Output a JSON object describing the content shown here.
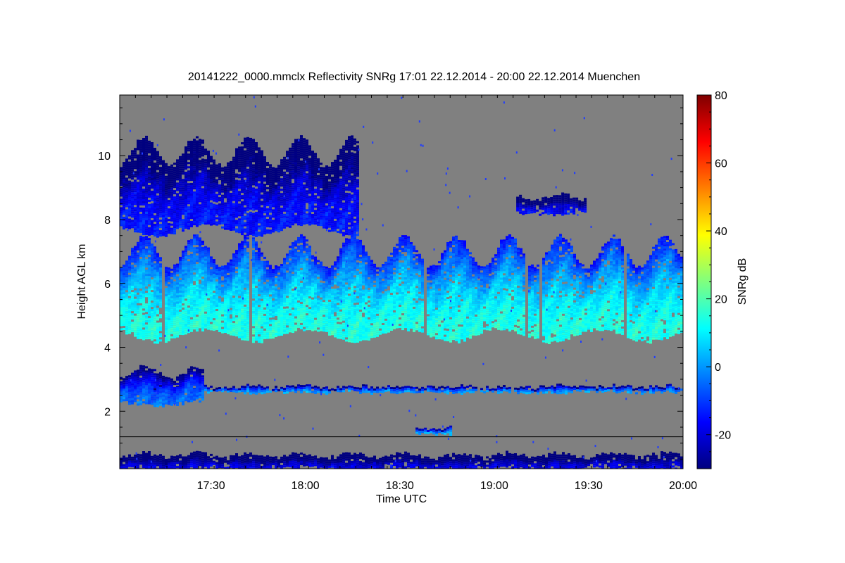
{
  "chart_data": {
    "type": "heatmap",
    "title": "20141222_0000.mmclx Reflectivity SNRg   17:01 22.12.2014 - 20:00 22.12.2014 Muenchen",
    "xlabel": "Time UTC",
    "ylabel": "Height AGL km",
    "colorbar_label": "SNRg dB",
    "x_range_min": [
      1021,
      1200
    ],
    "y_range_km": [
      0.2,
      11.9
    ],
    "color_range_db": [
      -30,
      80
    ],
    "x_ticks": [
      {
        "min": 1050,
        "label": "17:30"
      },
      {
        "min": 1080,
        "label": "18:00"
      },
      {
        "min": 1110,
        "label": "18:30"
      },
      {
        "min": 1140,
        "label": "19:00"
      },
      {
        "min": 1170,
        "label": "19:30"
      },
      {
        "min": 1200,
        "label": "20:00"
      }
    ],
    "y_ticks": [
      {
        "km": 2,
        "label": "2"
      },
      {
        "km": 4,
        "label": "4"
      },
      {
        "km": 6,
        "label": "6"
      },
      {
        "km": 8,
        "label": "8"
      },
      {
        "km": 10,
        "label": "10"
      }
    ],
    "colorbar_ticks": [
      {
        "db": -20,
        "label": "-20"
      },
      {
        "db": 0,
        "label": "0"
      },
      {
        "db": 20,
        "label": "20"
      },
      {
        "db": 40,
        "label": "40"
      },
      {
        "db": 60,
        "label": "60"
      },
      {
        "db": 80,
        "label": "80"
      }
    ],
    "background_color": "#808080",
    "colormap": [
      "#00007f",
      "#0000ff",
      "#007fff",
      "#00ffff",
      "#7fff7f",
      "#ffff00",
      "#ff7f00",
      "#ff0000",
      "#7f0000"
    ],
    "features": [
      {
        "name": "main-cloud-deck",
        "t_start": 1021,
        "t_end": 1200,
        "base_km": 4.2,
        "top_km": 7.5,
        "peak_db": 18
      },
      {
        "name": "upper-cirrus",
        "t_start": 1021,
        "t_end": 1097,
        "base_km": 7.5,
        "top_km": 10.6,
        "peak_db": -10
      },
      {
        "name": "high-patch",
        "t_start": 1147,
        "t_end": 1169,
        "base_km": 8.2,
        "top_km": 8.8,
        "peak_db": -12
      },
      {
        "name": "low-layer",
        "t_start": 1021,
        "t_end": 1200,
        "base_km": 2.6,
        "top_km": 2.8,
        "peak_db": 5
      },
      {
        "name": "lower-echoes",
        "t_start": 1021,
        "t_end": 1047,
        "base_km": 2.2,
        "top_km": 3.4,
        "peak_db": 0
      },
      {
        "name": "boundary-patch",
        "t_start": 1115,
        "t_end": 1126,
        "base_km": 1.3,
        "top_km": 1.5,
        "peak_db": 8
      },
      {
        "name": "near-ground-clutter",
        "t_start": 1021,
        "t_end": 1200,
        "base_km": 0.2,
        "top_km": 0.7,
        "peak_db": -15
      }
    ],
    "reference_line_km": 1.2
  }
}
